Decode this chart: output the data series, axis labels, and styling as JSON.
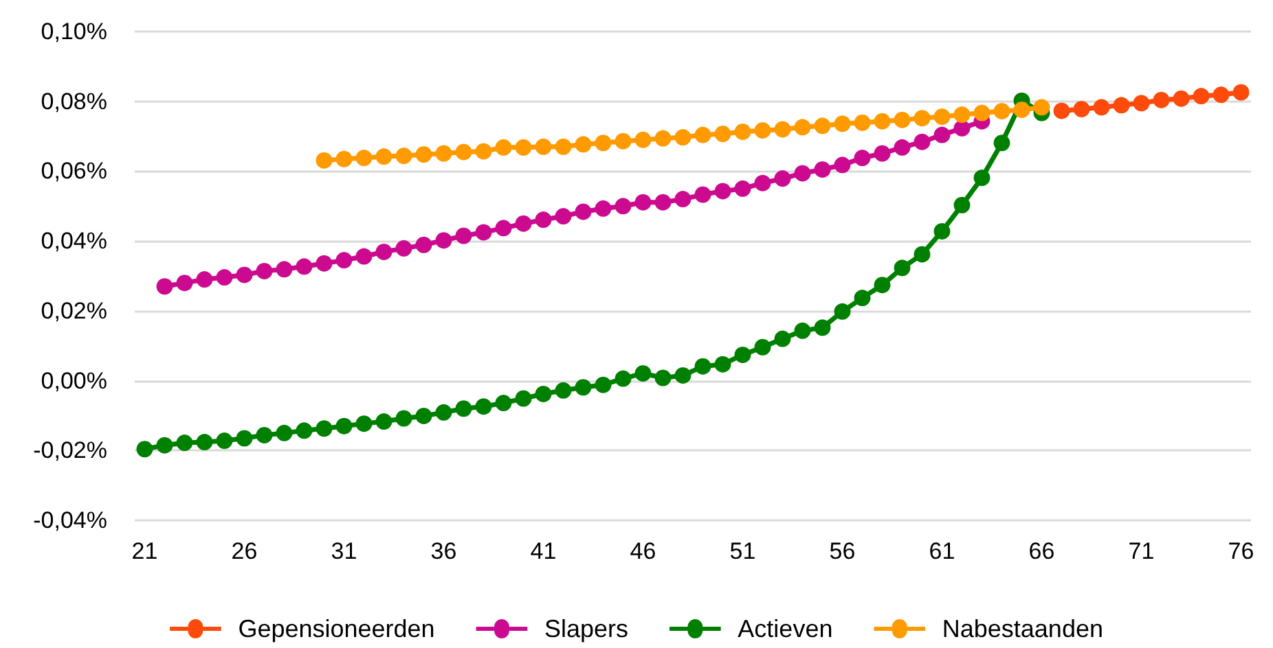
{
  "chart_data": {
    "type": "line",
    "xlim": [
      20.5,
      76.5
    ],
    "xticks": [
      21,
      26,
      31,
      36,
      41,
      46,
      51,
      56,
      61,
      66,
      71,
      76
    ],
    "ylim": [
      -0.04,
      0.1
    ],
    "yticks": [
      {
        "value": -0.04,
        "label": "-0,04%"
      },
      {
        "value": -0.02,
        "label": "-0,02%"
      },
      {
        "value": 0,
        "label": "0,00%"
      },
      {
        "value": 0.02,
        "label": "0,02%"
      },
      {
        "value": 0.04,
        "label": "0,04%"
      },
      {
        "value": 0.06,
        "label": "0,06%"
      },
      {
        "value": 0.08,
        "label": "0,08%"
      },
      {
        "value": 0.1,
        "label": "0,10%"
      }
    ],
    "grid": "y",
    "legend": "bottom",
    "marker": "circle",
    "line_style": "solid",
    "series": [
      {
        "name": "Gepensioneerden",
        "color": "#fe4a0a",
        "x": [
          67,
          68,
          69,
          70,
          71,
          72,
          73,
          74,
          75,
          76
        ],
        "values": [
          0.0773,
          0.0778,
          0.0783,
          0.0789,
          0.0795,
          0.0804,
          0.0808,
          0.0815,
          0.0819,
          0.0826
        ]
      },
      {
        "name": "Slapers",
        "color": "#cc0a8f",
        "x": [
          22,
          23,
          24,
          25,
          26,
          27,
          28,
          29,
          30,
          31,
          32,
          33,
          34,
          35,
          36,
          37,
          38,
          39,
          40,
          41,
          42,
          43,
          44,
          45,
          46,
          47,
          48,
          49,
          50,
          51,
          52,
          53,
          54,
          55,
          56,
          57,
          58,
          59,
          60,
          61,
          62,
          63
        ],
        "values": [
          0.027,
          0.028,
          0.029,
          0.0296,
          0.0303,
          0.0314,
          0.0319,
          0.0327,
          0.0336,
          0.0345,
          0.0356,
          0.0369,
          0.0379,
          0.0389,
          0.0402,
          0.0415,
          0.0425,
          0.0437,
          0.045,
          0.0461,
          0.0471,
          0.0484,
          0.0493,
          0.05,
          0.0511,
          0.0511,
          0.052,
          0.0533,
          0.0543,
          0.055,
          0.0566,
          0.0579,
          0.0594,
          0.0605,
          0.0618,
          0.0638,
          0.0651,
          0.0668,
          0.0684,
          0.0704,
          0.0723,
          0.0743
        ]
      },
      {
        "name": "Actieven",
        "color": "#008000",
        "x": [
          21,
          22,
          23,
          24,
          25,
          26,
          27,
          28,
          29,
          30,
          31,
          32,
          33,
          34,
          35,
          36,
          37,
          38,
          39,
          40,
          41,
          42,
          43,
          44,
          45,
          46,
          47,
          48,
          49,
          50,
          51,
          52,
          53,
          54,
          55,
          56,
          57,
          58,
          59,
          60,
          61,
          62,
          63,
          64,
          65,
          66
        ],
        "values": [
          -0.0196,
          -0.0185,
          -0.0178,
          -0.0176,
          -0.0172,
          -0.0165,
          -0.0156,
          -0.015,
          -0.0143,
          -0.0137,
          -0.013,
          -0.0123,
          -0.0117,
          -0.0108,
          -0.0101,
          -0.0091,
          -0.008,
          -0.0074,
          -0.0064,
          -0.0051,
          -0.0038,
          -0.0028,
          -0.0019,
          -0.0012,
          0.0006,
          0.0021,
          0.0008,
          0.0015,
          0.0041,
          0.0047,
          0.0074,
          0.0096,
          0.012,
          0.0143,
          0.0152,
          0.0198,
          0.0237,
          0.0274,
          0.0323,
          0.0362,
          0.0428,
          0.0503,
          0.0581,
          0.0681,
          0.0802,
          0.0767
        ]
      },
      {
        "name": "Nabestaanden",
        "color": "#ff9a00",
        "x": [
          30,
          31,
          32,
          33,
          34,
          35,
          36,
          37,
          38,
          39,
          40,
          41,
          42,
          43,
          44,
          45,
          46,
          47,
          48,
          49,
          50,
          51,
          52,
          53,
          54,
          55,
          56,
          57,
          58,
          59,
          60,
          61,
          62,
          63,
          64,
          65,
          66
        ],
        "values": [
          0.0631,
          0.0635,
          0.0638,
          0.0642,
          0.0644,
          0.0648,
          0.0651,
          0.0655,
          0.0657,
          0.0668,
          0.0668,
          0.067,
          0.067,
          0.0677,
          0.0681,
          0.0686,
          0.069,
          0.0694,
          0.0697,
          0.0704,
          0.0707,
          0.0713,
          0.0717,
          0.072,
          0.0726,
          0.073,
          0.0736,
          0.0739,
          0.0743,
          0.0747,
          0.0752,
          0.0756,
          0.0762,
          0.0767,
          0.0772,
          0.0776,
          0.0783
        ]
      }
    ]
  }
}
